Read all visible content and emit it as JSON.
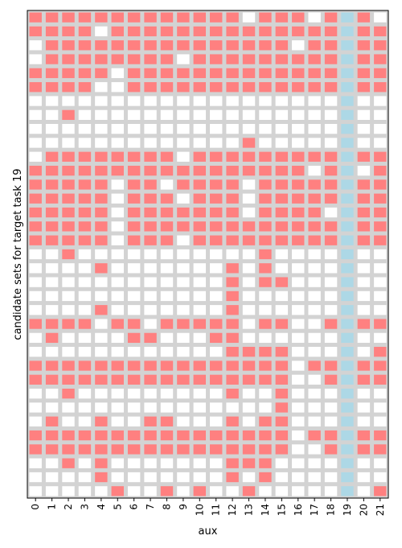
{
  "chart_data": {
    "type": "heatmap",
    "title": "",
    "xlabel": "aux",
    "ylabel": "candidate sets for target task 19",
    "x_tick_labels": [
      "0",
      "1",
      "2",
      "3",
      "4",
      "5",
      "6",
      "7",
      "8",
      "9",
      "10",
      "11",
      "12",
      "13",
      "14",
      "15",
      "16",
      "17",
      "18",
      "19",
      "20",
      "21"
    ],
    "y_tick_labels": [],
    "target_column": 19,
    "legend": "none",
    "grid": true,
    "colors": {
      "selected": "#ff8080",
      "unselected": "#ffffff",
      "target": "#add8e6",
      "grid": "#d3d3d3",
      "frame": "#000000"
    },
    "matrix": [
      "1111111111111011101010",
      "1111011111111111111011",
      "0111111111111111011111",
      "0111111110111111111011",
      "1111101111111111111011",
      "1111001111111111111011",
      "0000000000000000000000",
      "0010000000000000000000",
      "0000000000000000000000",
      "0000000000000100000000",
      "0111111110111111111011",
      "1111111111111111101001",
      "1111101101111011111011",
      "1111101110111011111011",
      "1111101111111011110011",
      "1111101111111111111011",
      "1111101110111111111011",
      "0010000000000010000000",
      "0000100000001010000000",
      "0000000000001011000000",
      "0000000000001000000000",
      "0000100000001000000000",
      "1111011011111011001011",
      "0100001100011000000000",
      "0000000000001111000001",
      "1111111111111111011111",
      "1111111111111111001011",
      "0010000000001001000000",
      "0000000000000001000000",
      "0100100110001011000000",
      "1111111111111111011011",
      "1111111111111111001011",
      "0010100000001110000000",
      "0000100000001010000000",
      "0000010010100100000001"
    ]
  }
}
